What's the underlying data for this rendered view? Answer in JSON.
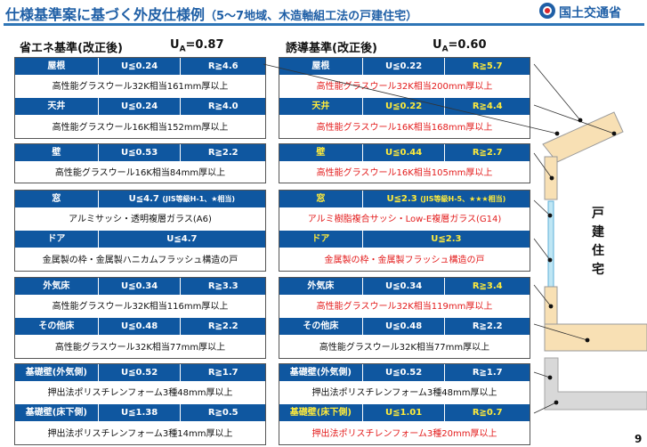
{
  "header": {
    "title": "仕様基準案に基づく外皮仕様例",
    "subtitle": "（5～7地域、木造軸組工法の戸建住宅）",
    "ministry": "国土交通省"
  },
  "columns": {
    "left": {
      "label": "省エネ基準(改正後)",
      "ua_symbol": "U",
      "ua_sub": "A",
      "ua_value": "=0.87"
    },
    "right": {
      "label": "誘導基準(改正後)",
      "ua_symbol": "U",
      "ua_sub": "A",
      "ua_value": "=0.60"
    }
  },
  "left": [
    {
      "part": "屋根",
      "u": "U≦0.24",
      "r": "R≧4.6",
      "desc": "高性能グラスウール32K相当161mm厚以上"
    },
    {
      "part": "天井",
      "u": "U≦0.24",
      "r": "R≧4.0",
      "desc": "高性能グラスウール16K相当152mm厚以上"
    },
    {
      "part": "壁",
      "u": "U≦0.53",
      "r": "R≧2.2",
      "desc": "高性能グラスウール16K相当84mm厚以上"
    },
    {
      "part": "窓",
      "u": "U≦4.7",
      "u_note": "(JIS等級H-1、★相当)",
      "desc": "アルミサッシ・透明複層ガラス(A6)"
    },
    {
      "part": "ドア",
      "u": "U≦4.7",
      "desc": "金属製の枠・金属製ハニカムフラッシュ構造の戸"
    },
    {
      "part": "外気床",
      "u": "U≦0.34",
      "r": "R≧3.3",
      "desc": "高性能グラスウール32K相当116mm厚以上"
    },
    {
      "part": "その他床",
      "u": "U≦0.48",
      "r": "R≧2.2",
      "desc": "高性能グラスウール32K相当77mm厚以上"
    },
    {
      "part": "基礎壁(外気側)",
      "u": "U≦0.52",
      "r": "R≧1.7",
      "desc": "押出法ポリスチレンフォーム3種48mm厚以上"
    },
    {
      "part": "基礎壁(床下側)",
      "u": "U≦1.38",
      "r": "R≧0.5",
      "desc": "押出法ポリスチレンフォーム3種14mm厚以上"
    }
  ],
  "right": [
    {
      "part": "屋根",
      "u": "U≦0.22",
      "r": "R≧5.7",
      "desc": "高性能グラスウール32K相当200mm厚以上"
    },
    {
      "part": "天井",
      "u": "U≦0.22",
      "r": "R≧4.4",
      "desc": "高性能グラスウール16K相当168mm厚以上"
    },
    {
      "part": "壁",
      "u": "U≦0.44",
      "r": "R≧2.7",
      "desc": "高性能グラスウール16K相当105mm厚以上"
    },
    {
      "part": "窓",
      "u": "U≦2.3",
      "u_note": "(JIS等級H-5、★★★相当)",
      "desc": "アルミ樹脂複合サッシ・Low-E複層ガラス(G14)"
    },
    {
      "part": "ドア",
      "u": "U≦2.3",
      "desc": "金属製の枠・金属製フラッシュ構造の戸"
    },
    {
      "part": "外気床",
      "u": "U≦0.34",
      "r": "R≧3.4",
      "desc": "高性能グラスウール32K相当119mm厚以上"
    },
    {
      "part": "その他床",
      "u": "U≦0.48",
      "r": "R≧2.2",
      "desc": "高性能グラスウール32K相当77mm厚以上"
    },
    {
      "part": "基礎壁(外気側)",
      "u": "U≦0.52",
      "r": "R≧1.7",
      "desc": "押出法ポリスチレンフォーム3種48mm厚以上"
    },
    {
      "part": "基礎壁(床下側)",
      "u": "U≦1.01",
      "r": "R≧0.7",
      "desc": "押出法ポリスチレンフォーム3種20mm厚以上"
    }
  ],
  "house": {
    "label": "戸建住宅"
  },
  "page_number": "9",
  "colors": {
    "header_blue": "#0f57a0",
    "highlight_yellow": "#ffeb3b",
    "changed_red": "#e31b1b",
    "insulation_beige": "#f8e0b4"
  }
}
